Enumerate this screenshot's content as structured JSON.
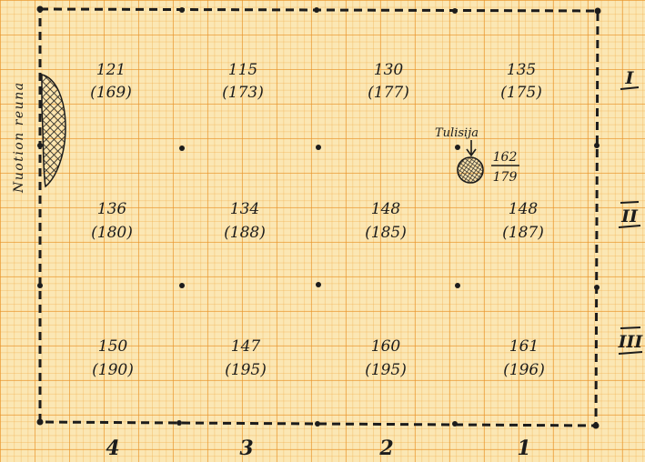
{
  "margin_label": "Nuotion reuna",
  "fireplace_label": "Tulisija",
  "fireplace_value": {
    "top": "162",
    "bottom": "179"
  },
  "row_labels": [
    "I",
    "II",
    "III"
  ],
  "column_labels": [
    "4",
    "3",
    "2",
    "1"
  ],
  "cells": [
    {
      "top": "121",
      "bottom": "(169)"
    },
    {
      "top": "115",
      "bottom": "(173)"
    },
    {
      "top": "130",
      "bottom": "(177)"
    },
    {
      "top": "135",
      "bottom": "(175)"
    },
    {
      "top": "136",
      "bottom": "(180)"
    },
    {
      "top": "134",
      "bottom": "(188)"
    },
    {
      "top": "148",
      "bottom": "(185)"
    },
    {
      "top": "148",
      "bottom": "(187)"
    },
    {
      "top": "150",
      "bottom": "(190)"
    },
    {
      "top": "147",
      "bottom": "(195)"
    },
    {
      "top": "160",
      "bottom": "(195)"
    },
    {
      "top": "161",
      "bottom": "(196)"
    }
  ],
  "colors": {
    "ink": "#1c1c1c",
    "paper": "#fbe7b4",
    "grid": "#e89228"
  }
}
